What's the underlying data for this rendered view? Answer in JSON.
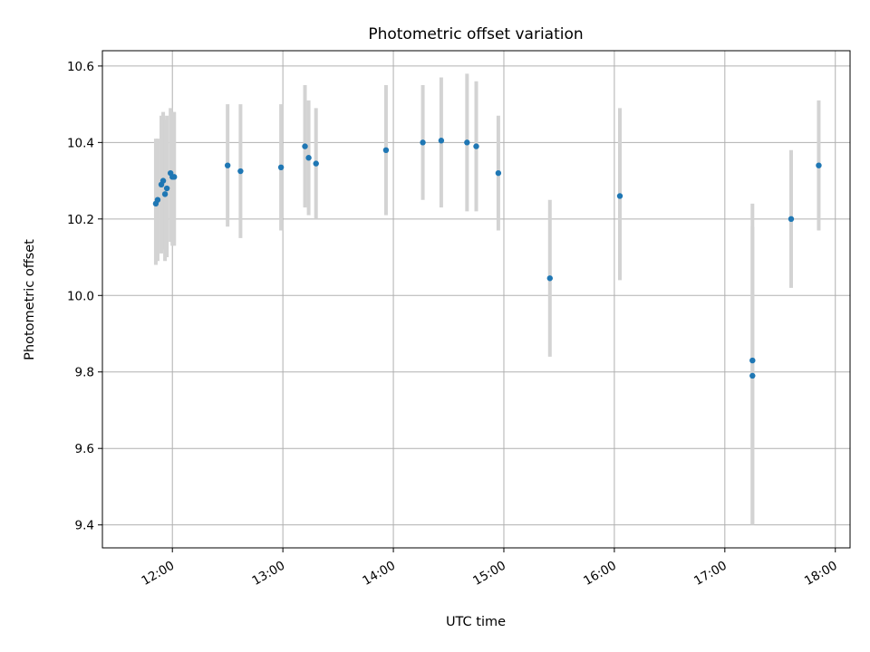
{
  "chart_data": {
    "type": "scatter",
    "title": "Photometric offset variation",
    "xlabel": "UTC time",
    "ylabel": "Photometric offset",
    "x_is_time": true,
    "xlim": [
      "11:22",
      "18:08"
    ],
    "ylim": [
      9.34,
      10.64
    ],
    "xticks": [
      "12:00",
      "13:00",
      "14:00",
      "15:00",
      "16:00",
      "17:00",
      "18:00"
    ],
    "yticks": [
      9.4,
      9.6,
      9.8,
      10.0,
      10.2,
      10.4,
      10.6
    ],
    "ytick_labels": [
      "9.4",
      "9.6",
      "9.8",
      "10.0",
      "10.2",
      "10.4",
      "10.6"
    ],
    "grid": true,
    "series": [
      {
        "x": [
          "11:51",
          "11:52",
          "11:54",
          "11:55",
          "11:56",
          "11:57",
          "11:59",
          "12:00",
          "12:01",
          "12:30",
          "12:37",
          "12:59",
          "13:12",
          "13:14",
          "13:18",
          "13:56",
          "14:16",
          "14:26",
          "14:40",
          "14:45",
          "14:57",
          "15:25",
          "16:03",
          "17:15",
          "17:15",
          "17:36",
          "17:51"
        ],
        "y": [
          10.24,
          10.25,
          10.29,
          10.3,
          10.265,
          10.28,
          10.32,
          10.31,
          10.31,
          10.34,
          10.325,
          10.335,
          10.39,
          10.36,
          10.345,
          10.38,
          10.4,
          10.405,
          10.4,
          10.39,
          10.32,
          10.045,
          10.26,
          9.83,
          9.79,
          10.2,
          10.34
        ],
        "yerr_low": [
          10.08,
          10.09,
          10.11,
          10.12,
          10.09,
          10.1,
          10.14,
          10.13,
          10.13,
          10.18,
          10.15,
          10.17,
          10.23,
          10.21,
          10.2,
          10.21,
          10.25,
          10.23,
          10.22,
          10.22,
          10.17,
          9.84,
          10.04,
          9.4,
          9.4,
          10.02,
          10.17
        ],
        "yerr_high": [
          10.41,
          10.41,
          10.47,
          10.48,
          10.46,
          10.47,
          10.49,
          10.48,
          10.48,
          10.5,
          10.5,
          10.5,
          10.55,
          10.51,
          10.49,
          10.55,
          10.55,
          10.57,
          10.58,
          10.56,
          10.47,
          10.25,
          10.49,
          10.24,
          10.18,
          10.38,
          10.51
        ]
      }
    ],
    "colors": {
      "marker": "#1f77b4",
      "errorbar": "#d3d3d3",
      "grid": "#b0b0b0",
      "axes": "#000000"
    }
  }
}
